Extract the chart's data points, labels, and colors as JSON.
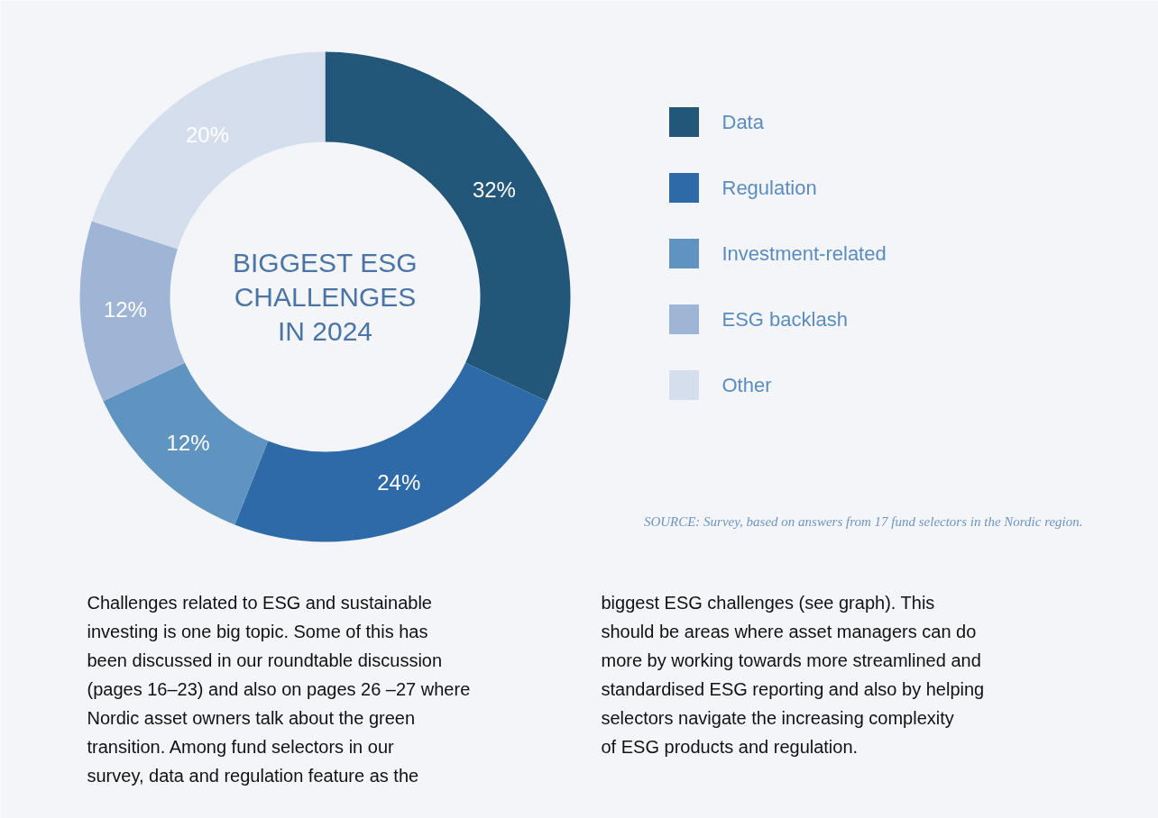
{
  "chart_data": {
    "type": "donut",
    "title": "BIGGEST ESG CHALLENGES IN 2024",
    "categories": [
      "Data",
      "Regulation",
      "Investment-related",
      "ESG backlash",
      "Other"
    ],
    "values": [
      32,
      24,
      12,
      12,
      20
    ],
    "colors": [
      "#23577a",
      "#2e6aa8",
      "#5f93c0",
      "#9fb5d6",
      "#d5deec"
    ],
    "value_labels": [
      "32%",
      "24%",
      "12%",
      "12%",
      "20%"
    ],
    "legend": "right",
    "annotations": [
      "SOURCE: Survey, based on answers from 17 fund selectors in the Nordic region.",
      "Challenges related to ESG and sustainable investing is one big topic. Some of this has been discussed in our roundtable discussion (pages 16–23) and also on pages 26 –27 where Nordic asset owners talk about the green transition. Among fund selectors in our survey, data and regulation feature as the biggest ESG challenges (see graph). This should be areas where asset managers can do more by working towards more streamlined and standardised ESG reporting and also by helping selectors navigate the increasing complexity of ESG products and regulation."
    ]
  }
}
